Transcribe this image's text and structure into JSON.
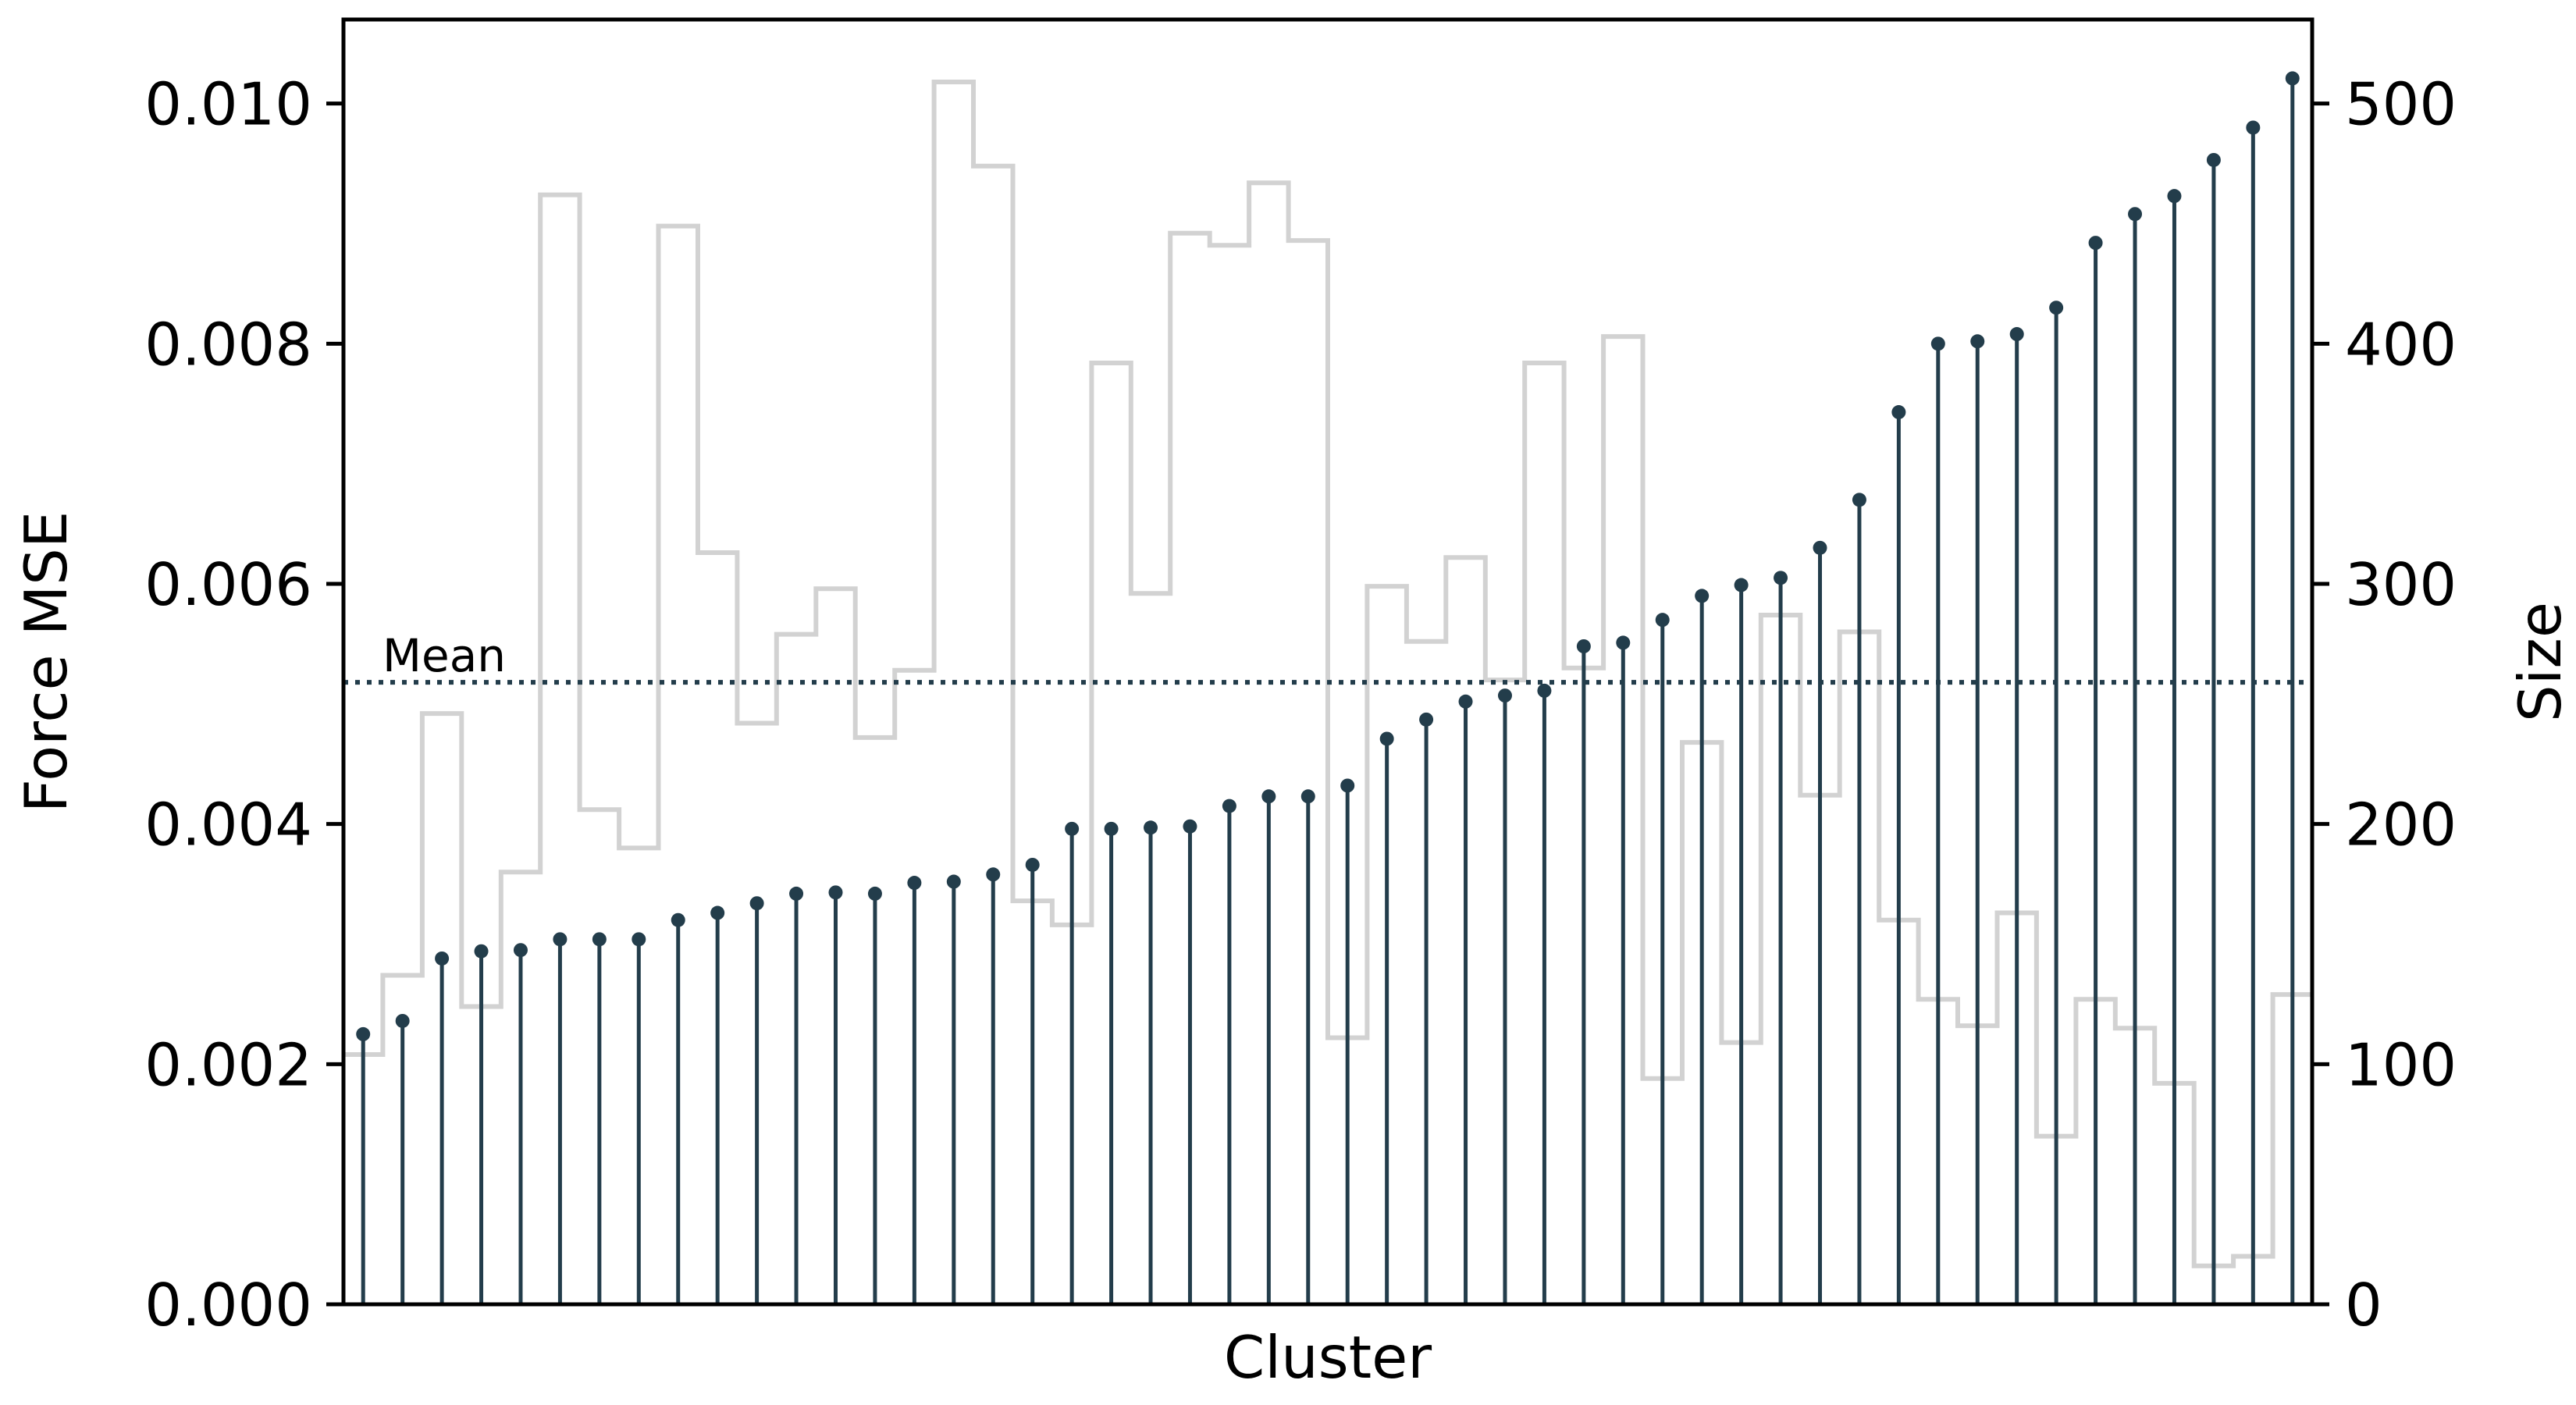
{
  "chart_data": {
    "type": "bar",
    "xlabel": "Cluster",
    "ylabel": "Force MSE",
    "y2label": "Size",
    "ylim": [
      0,
      0.0107
    ],
    "y2lim": [
      0,
      535
    ],
    "yticks": [
      "0.000",
      "0.002",
      "0.004",
      "0.006",
      "0.008",
      "0.010"
    ],
    "y2ticks": [
      "0",
      "100",
      "200",
      "300",
      "400",
      "500"
    ],
    "mean": {
      "label": "Mean",
      "value": 0.00518,
      "style": "dotted"
    },
    "colors": {
      "stem": "#233d4b",
      "size_step": "#d2d2d2",
      "mean_line": "#233d4b"
    },
    "series": [
      {
        "kind": "stem",
        "axis": "left",
        "values": [
          0.00225,
          0.00236,
          0.00288,
          0.00294,
          0.00295,
          0.00304,
          0.00304,
          0.00304,
          0.0032,
          0.00326,
          0.00334,
          0.00342,
          0.00343,
          0.00342,
          0.00351,
          0.00352,
          0.00358,
          0.00366,
          0.00396,
          0.00396,
          0.00397,
          0.00398,
          0.00415,
          0.00423,
          0.00423,
          0.00432,
          0.00471,
          0.00487,
          0.00502,
          0.00507,
          0.00511,
          0.00548,
          0.00551,
          0.0057,
          0.0059,
          0.00599,
          0.00605,
          0.0063,
          0.0067,
          0.00743,
          0.008,
          0.00802,
          0.00808,
          0.0083,
          0.00884,
          0.00908,
          0.00923,
          0.00953,
          0.0098,
          0.01021
        ]
      },
      {
        "kind": "step",
        "axis": "right",
        "values": [
          104,
          137,
          246,
          124,
          180,
          462,
          206,
          190,
          449,
          313,
          242,
          279,
          298,
          236,
          264,
          509,
          474,
          168,
          158,
          392,
          296,
          446,
          441,
          467,
          443,
          111,
          299,
          276,
          311,
          260,
          392,
          265,
          403,
          94,
          234,
          109,
          287,
          212,
          280,
          160,
          127,
          116,
          163,
          70,
          127,
          115,
          92,
          16,
          20,
          129
        ]
      }
    ]
  }
}
